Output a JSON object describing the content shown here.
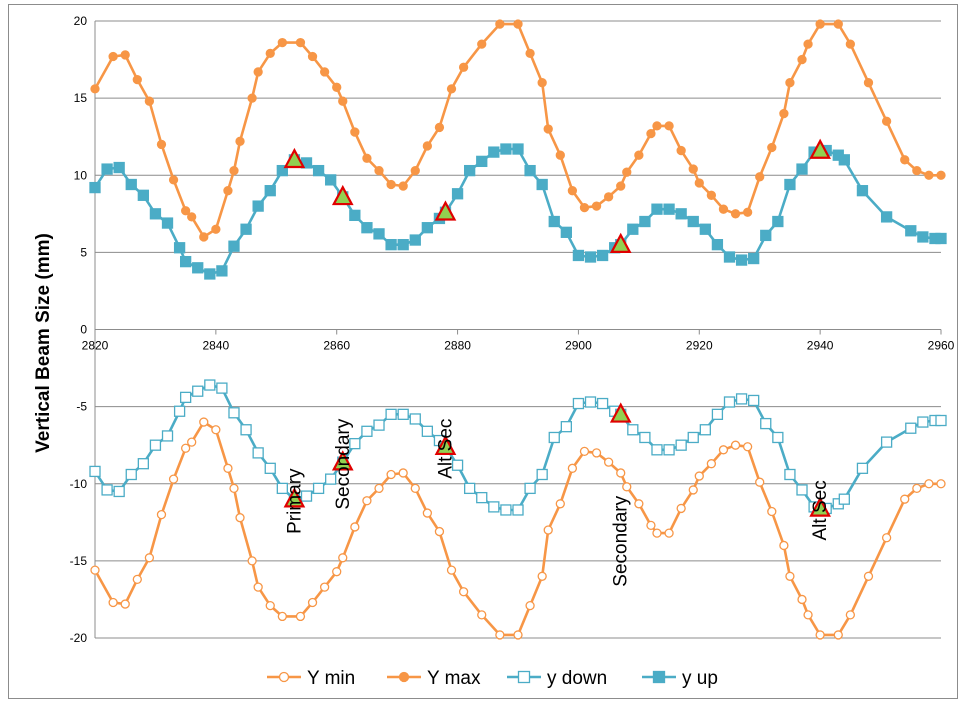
{
  "chart_data": {
    "type": "line",
    "title": "",
    "xlabel": "",
    "ylabel": "Vertical Beam Size (mm)",
    "xlim": [
      2820,
      2960
    ],
    "ylim": [
      -20,
      20
    ],
    "x_ticks": [
      "2820",
      "2840",
      "2860",
      "2880",
      "2900",
      "2920",
      "2940",
      "2960"
    ],
    "y_ticks": [
      "-20",
      "-15",
      "-10",
      "-5",
      "0",
      "5",
      "10",
      "15",
      "20"
    ],
    "grid": "horizontal",
    "legend_position": "bottom",
    "colors": {
      "orange": "#F79646",
      "blue": "#4BACC6",
      "marker_fill": "#92D050",
      "marker_edge": "#E00000"
    },
    "series": [
      {
        "name": "Y min",
        "color": "#F79646",
        "marker": "open-circle",
        "points": [
          [
            2820,
            -15.6
          ],
          [
            2823,
            -17.7
          ],
          [
            2825,
            -17.8
          ],
          [
            2827,
            -16.2
          ],
          [
            2829,
            -14.8
          ],
          [
            2831,
            -12
          ],
          [
            2833,
            -9.7
          ],
          [
            2835,
            -7.7
          ],
          [
            2836,
            -7.3
          ],
          [
            2838,
            -6
          ],
          [
            2840,
            -6.5
          ],
          [
            2842,
            -9
          ],
          [
            2843,
            -10.3
          ],
          [
            2844,
            -12.2
          ],
          [
            2846,
            -15
          ],
          [
            2847,
            -16.7
          ],
          [
            2849,
            -17.9
          ],
          [
            2851,
            -18.6
          ],
          [
            2854,
            -18.6
          ],
          [
            2856,
            -17.7
          ],
          [
            2858,
            -16.7
          ],
          [
            2860,
            -15.7
          ],
          [
            2861,
            -14.8
          ],
          [
            2863,
            -12.8
          ],
          [
            2865,
            -11.1
          ],
          [
            2867,
            -10.3
          ],
          [
            2869,
            -9.4
          ],
          [
            2871,
            -9.3
          ],
          [
            2873,
            -10.3
          ],
          [
            2875,
            -11.9
          ],
          [
            2877,
            -13.1
          ],
          [
            2879,
            -15.6
          ],
          [
            2881,
            -17
          ],
          [
            2884,
            -18.5
          ],
          [
            2887,
            -19.8
          ],
          [
            2890,
            -19.8
          ],
          [
            2892,
            -17.9
          ],
          [
            2894,
            -16
          ],
          [
            2895,
            -13
          ],
          [
            2897,
            -11.3
          ],
          [
            2899,
            -9
          ],
          [
            2901,
            -7.9
          ],
          [
            2903,
            -8
          ],
          [
            2905,
            -8.6
          ],
          [
            2907,
            -9.3
          ],
          [
            2908,
            -10.2
          ],
          [
            2910,
            -11.3
          ],
          [
            2912,
            -12.7
          ],
          [
            2913,
            -13.2
          ],
          [
            2915,
            -13.2
          ],
          [
            2917,
            -11.6
          ],
          [
            2919,
            -10.4
          ],
          [
            2920,
            -9.5
          ],
          [
            2922,
            -8.7
          ],
          [
            2924,
            -7.8
          ],
          [
            2926,
            -7.5
          ],
          [
            2928,
            -7.6
          ],
          [
            2930,
            -9.9
          ],
          [
            2932,
            -11.8
          ],
          [
            2934,
            -14
          ],
          [
            2935,
            -16
          ],
          [
            2937,
            -17.5
          ],
          [
            2938,
            -18.5
          ],
          [
            2940,
            -19.8
          ],
          [
            2943,
            -19.8
          ],
          [
            2945,
            -18.5
          ],
          [
            2948,
            -16
          ],
          [
            2951,
            -13.5
          ],
          [
            2954,
            -11
          ],
          [
            2956,
            -10.3
          ],
          [
            2958,
            -10
          ],
          [
            2960,
            -10
          ]
        ]
      },
      {
        "name": "Y max",
        "color": "#F79646",
        "marker": "filled-circle",
        "points": [
          [
            2820,
            15.6
          ],
          [
            2823,
            17.7
          ],
          [
            2825,
            17.8
          ],
          [
            2827,
            16.2
          ],
          [
            2829,
            14.8
          ],
          [
            2831,
            12
          ],
          [
            2833,
            9.7
          ],
          [
            2835,
            7.7
          ],
          [
            2836,
            7.3
          ],
          [
            2838,
            6
          ],
          [
            2840,
            6.5
          ],
          [
            2842,
            9
          ],
          [
            2843,
            10.3
          ],
          [
            2844,
            12.2
          ],
          [
            2846,
            15
          ],
          [
            2847,
            16.7
          ],
          [
            2849,
            17.9
          ],
          [
            2851,
            18.6
          ],
          [
            2854,
            18.6
          ],
          [
            2856,
            17.7
          ],
          [
            2858,
            16.7
          ],
          [
            2860,
            15.7
          ],
          [
            2861,
            14.8
          ],
          [
            2863,
            12.8
          ],
          [
            2865,
            11.1
          ],
          [
            2867,
            10.3
          ],
          [
            2869,
            9.4
          ],
          [
            2871,
            9.3
          ],
          [
            2873,
            10.3
          ],
          [
            2875,
            11.9
          ],
          [
            2877,
            13.1
          ],
          [
            2879,
            15.6
          ],
          [
            2881,
            17
          ],
          [
            2884,
            18.5
          ],
          [
            2887,
            19.8
          ],
          [
            2890,
            19.8
          ],
          [
            2892,
            17.9
          ],
          [
            2894,
            16
          ],
          [
            2895,
            13
          ],
          [
            2897,
            11.3
          ],
          [
            2899,
            9
          ],
          [
            2901,
            7.9
          ],
          [
            2903,
            8
          ],
          [
            2905,
            8.6
          ],
          [
            2907,
            9.3
          ],
          [
            2908,
            10.2
          ],
          [
            2910,
            11.3
          ],
          [
            2912,
            12.7
          ],
          [
            2913,
            13.2
          ],
          [
            2915,
            13.2
          ],
          [
            2917,
            11.6
          ],
          [
            2919,
            10.4
          ],
          [
            2920,
            9.5
          ],
          [
            2922,
            8.7
          ],
          [
            2924,
            7.8
          ],
          [
            2926,
            7.5
          ],
          [
            2928,
            7.6
          ],
          [
            2930,
            9.9
          ],
          [
            2932,
            11.8
          ],
          [
            2934,
            14
          ],
          [
            2935,
            16
          ],
          [
            2937,
            17.5
          ],
          [
            2938,
            18.5
          ],
          [
            2940,
            19.8
          ],
          [
            2943,
            19.8
          ],
          [
            2945,
            18.5
          ],
          [
            2948,
            16
          ],
          [
            2951,
            13.5
          ],
          [
            2954,
            11
          ],
          [
            2956,
            10.3
          ],
          [
            2958,
            10
          ],
          [
            2960,
            10
          ]
        ]
      },
      {
        "name": "y down",
        "color": "#4BACC6",
        "marker": "open-square",
        "points": [
          [
            2820,
            -9.2
          ],
          [
            2822,
            -10.4
          ],
          [
            2824,
            -10.5
          ],
          [
            2826,
            -9.4
          ],
          [
            2828,
            -8.7
          ],
          [
            2830,
            -7.5
          ],
          [
            2832,
            -6.9
          ],
          [
            2834,
            -5.3
          ],
          [
            2835,
            -4.4
          ],
          [
            2837,
            -4
          ],
          [
            2839,
            -3.6
          ],
          [
            2841,
            -3.8
          ],
          [
            2843,
            -5.4
          ],
          [
            2845,
            -6.5
          ],
          [
            2847,
            -8
          ],
          [
            2849,
            -9
          ],
          [
            2851,
            -10.3
          ],
          [
            2853,
            -11
          ],
          [
            2855,
            -10.8
          ],
          [
            2857,
            -10.3
          ],
          [
            2859,
            -9.7
          ],
          [
            2861,
            -8.6
          ],
          [
            2863,
            -7.4
          ],
          [
            2865,
            -6.6
          ],
          [
            2867,
            -6.2
          ],
          [
            2869,
            -5.5
          ],
          [
            2871,
            -5.5
          ],
          [
            2873,
            -5.8
          ],
          [
            2875,
            -6.6
          ],
          [
            2877,
            -7.2
          ],
          [
            2878,
            -7.6
          ],
          [
            2880,
            -8.8
          ],
          [
            2882,
            -10.3
          ],
          [
            2884,
            -10.9
          ],
          [
            2886,
            -11.5
          ],
          [
            2888,
            -11.7
          ],
          [
            2890,
            -11.7
          ],
          [
            2892,
            -10.3
          ],
          [
            2894,
            -9.4
          ],
          [
            2896,
            -7
          ],
          [
            2898,
            -6.3
          ],
          [
            2900,
            -4.8
          ],
          [
            2902,
            -4.7
          ],
          [
            2904,
            -4.8
          ],
          [
            2906,
            -5.3
          ],
          [
            2907,
            -5.5
          ],
          [
            2909,
            -6.5
          ],
          [
            2911,
            -7
          ],
          [
            2913,
            -7.8
          ],
          [
            2915,
            -7.8
          ],
          [
            2917,
            -7.5
          ],
          [
            2919,
            -7
          ],
          [
            2921,
            -6.5
          ],
          [
            2923,
            -5.5
          ],
          [
            2925,
            -4.7
          ],
          [
            2927,
            -4.5
          ],
          [
            2929,
            -4.6
          ],
          [
            2931,
            -6.1
          ],
          [
            2933,
            -7
          ],
          [
            2935,
            -9.4
          ],
          [
            2937,
            -10.4
          ],
          [
            2939,
            -11.5
          ],
          [
            2941,
            -11.6
          ],
          [
            2943,
            -11.3
          ],
          [
            2944,
            -11
          ],
          [
            2947,
            -9
          ],
          [
            2951,
            -7.3
          ],
          [
            2955,
            -6.4
          ],
          [
            2957,
            -6
          ],
          [
            2959,
            -5.9
          ],
          [
            2960,
            -5.9
          ]
        ]
      },
      {
        "name": "y up",
        "color": "#4BACC6",
        "marker": "filled-square",
        "points": [
          [
            2820,
            9.2
          ],
          [
            2822,
            10.4
          ],
          [
            2824,
            10.5
          ],
          [
            2826,
            9.4
          ],
          [
            2828,
            8.7
          ],
          [
            2830,
            7.5
          ],
          [
            2832,
            6.9
          ],
          [
            2834,
            5.3
          ],
          [
            2835,
            4.4
          ],
          [
            2837,
            4
          ],
          [
            2839,
            3.6
          ],
          [
            2841,
            3.8
          ],
          [
            2843,
            5.4
          ],
          [
            2845,
            6.5
          ],
          [
            2847,
            8
          ],
          [
            2849,
            9
          ],
          [
            2851,
            10.3
          ],
          [
            2853,
            11
          ],
          [
            2855,
            10.8
          ],
          [
            2857,
            10.3
          ],
          [
            2859,
            9.7
          ],
          [
            2861,
            8.6
          ],
          [
            2863,
            7.4
          ],
          [
            2865,
            6.6
          ],
          [
            2867,
            6.2
          ],
          [
            2869,
            5.5
          ],
          [
            2871,
            5.5
          ],
          [
            2873,
            5.8
          ],
          [
            2875,
            6.6
          ],
          [
            2877,
            7.2
          ],
          [
            2878,
            7.6
          ],
          [
            2880,
            8.8
          ],
          [
            2882,
            10.3
          ],
          [
            2884,
            10.9
          ],
          [
            2886,
            11.5
          ],
          [
            2888,
            11.7
          ],
          [
            2890,
            11.7
          ],
          [
            2892,
            10.3
          ],
          [
            2894,
            9.4
          ],
          [
            2896,
            7
          ],
          [
            2898,
            6.3
          ],
          [
            2900,
            4.8
          ],
          [
            2902,
            4.7
          ],
          [
            2904,
            4.8
          ],
          [
            2906,
            5.3
          ],
          [
            2907,
            5.5
          ],
          [
            2909,
            6.5
          ],
          [
            2911,
            7
          ],
          [
            2913,
            7.8
          ],
          [
            2915,
            7.8
          ],
          [
            2917,
            7.5
          ],
          [
            2919,
            7
          ],
          [
            2921,
            6.5
          ],
          [
            2923,
            5.5
          ],
          [
            2925,
            4.7
          ],
          [
            2927,
            4.5
          ],
          [
            2929,
            4.6
          ],
          [
            2931,
            6.1
          ],
          [
            2933,
            7
          ],
          [
            2935,
            9.4
          ],
          [
            2937,
            10.4
          ],
          [
            2939,
            11.5
          ],
          [
            2941,
            11.6
          ],
          [
            2943,
            11.3
          ],
          [
            2944,
            11
          ],
          [
            2947,
            9
          ],
          [
            2951,
            7.3
          ],
          [
            2955,
            6.4
          ],
          [
            2957,
            6
          ],
          [
            2959,
            5.9
          ],
          [
            2960,
            5.9
          ]
        ]
      }
    ],
    "triangle_markers": [
      [
        2853,
        11
      ],
      [
        2861,
        8.6
      ],
      [
        2878,
        7.6
      ],
      [
        2907,
        5.5
      ],
      [
        2940,
        11.6
      ],
      [
        2853,
        -11
      ],
      [
        2861,
        -8.6
      ],
      [
        2878,
        -7.6
      ],
      [
        2907,
        -5.5
      ],
      [
        2940,
        -11.6
      ]
    ],
    "annotations": [
      {
        "text": "Primary",
        "x": 2853,
        "y": -11
      },
      {
        "text": "Secondary",
        "x": 2861,
        "y": -8.6
      },
      {
        "text": "Alt Sec",
        "x": 2878,
        "y": -7.6
      },
      {
        "text": "Secondary",
        "x": 2907,
        "y": -13.6
      },
      {
        "text": "Alt Sec",
        "x": 2940,
        "y": -11.6
      }
    ]
  }
}
